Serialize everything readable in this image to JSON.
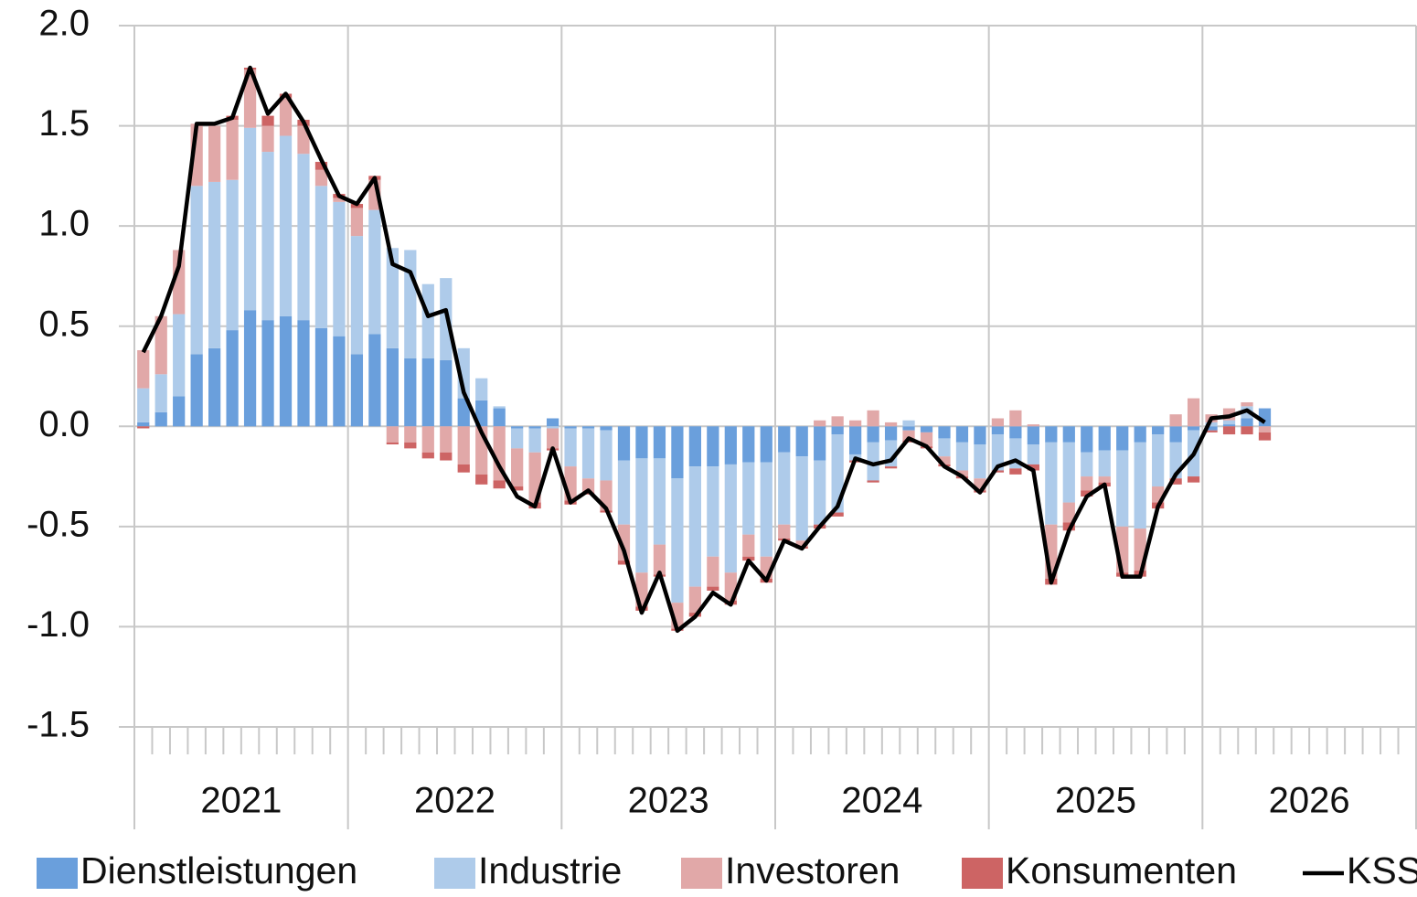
{
  "chart_data": {
    "type": "bar",
    "stacked": true,
    "grid": true,
    "legend": "bottom",
    "categories": [
      null,
      null,
      null,
      null,
      null,
      null,
      null,
      null,
      null,
      null,
      null,
      null,
      null,
      null,
      null,
      null,
      null,
      null,
      null,
      null,
      null,
      null,
      null,
      null,
      null,
      null,
      null,
      null,
      null,
      null,
      null,
      null,
      null,
      null,
      null,
      null,
      null,
      null,
      null,
      null,
      null,
      null,
      null,
      null,
      null,
      null,
      null,
      null,
      null,
      null,
      null,
      null,
      null,
      null,
      null,
      null,
      null,
      null,
      null,
      null,
      null,
      null,
      null,
      null,
      null,
      null,
      null,
      null,
      null,
      null,
      null,
      null
    ],
    "x_groups": [
      "2021",
      "2022",
      "2023",
      "2024",
      "2025",
      "2026"
    ],
    "ylim": [
      -1.5,
      2.0
    ],
    "yticks": [
      {
        "value": -1.5,
        "label": "-1.5"
      },
      {
        "value": -1.0,
        "label": "-1.0"
      },
      {
        "value": -0.5,
        "label": "-0.5"
      },
      {
        "value": 0,
        "label": "0.0"
      },
      {
        "value": 0.5,
        "label": "0.5"
      },
      {
        "value": 1.0,
        "label": "1.0"
      },
      {
        "value": 1.5,
        "label": "1.5"
      },
      {
        "value": 2.0,
        "label": "2.0"
      }
    ],
    "series": [
      {
        "name": "Dienstleistungen",
        "type": "bar",
        "color": "#6a9fdc",
        "values": [
          0.02,
          0.07,
          0.15,
          0.36,
          0.39,
          0.48,
          0.58,
          0.53,
          0.55,
          0.53,
          0.49,
          0.45,
          0.36,
          0.46,
          0.39,
          0.34,
          0.34,
          0.33,
          0.14,
          0.13,
          0.09,
          -0.01,
          -0.01,
          0.04,
          -0.01,
          -0.01,
          -0.02,
          -0.17,
          -0.16,
          -0.16,
          -0.26,
          -0.2,
          -0.2,
          -0.19,
          -0.18,
          -0.18,
          -0.13,
          -0.15,
          -0.17,
          -0.04,
          -0.14,
          -0.08,
          -0.07,
          -0.02,
          -0.03,
          -0.06,
          -0.08,
          -0.09,
          -0.04,
          -0.06,
          -0.09,
          -0.08,
          -0.08,
          -0.13,
          -0.12,
          -0.12,
          -0.08,
          -0.04,
          -0.08,
          -0.02,
          -0.02,
          0.01,
          0.04,
          0.09,
          null,
          null,
          null,
          null,
          null,
          null,
          null,
          null
        ]
      },
      {
        "name": "Industrie",
        "type": "bar",
        "color": "#aecbea",
        "values": [
          0.17,
          0.19,
          0.41,
          0.84,
          0.83,
          0.75,
          0.91,
          0.84,
          0.9,
          0.83,
          0.71,
          0.67,
          0.59,
          0.62,
          0.5,
          0.54,
          0.37,
          0.41,
          0.25,
          0.11,
          0.01,
          -0.1,
          -0.12,
          -0.01,
          -0.19,
          -0.25,
          -0.25,
          -0.32,
          -0.57,
          -0.43,
          -0.62,
          -0.6,
          -0.45,
          -0.54,
          -0.36,
          -0.47,
          -0.36,
          -0.42,
          -0.32,
          -0.39,
          -0.03,
          -0.19,
          -0.13,
          0.03,
          0,
          -0.09,
          -0.14,
          -0.17,
          -0.18,
          -0.15,
          -0.1,
          -0.41,
          -0.3,
          -0.12,
          -0.13,
          -0.38,
          -0.43,
          -0.26,
          -0.18,
          -0.23,
          0.02,
          0.02,
          0.06,
          0,
          null,
          null,
          null,
          null,
          null,
          null,
          null,
          null
        ]
      },
      {
        "name": "Investoren",
        "type": "bar",
        "color": "#e1a8a8",
        "values": [
          0.19,
          0.29,
          0.32,
          0.31,
          0.28,
          0.3,
          0.29,
          0.13,
          0.19,
          0.14,
          0.08,
          0.02,
          0.14,
          0.15,
          -0.08,
          -0.08,
          -0.13,
          -0.13,
          -0.19,
          -0.24,
          -0.27,
          -0.19,
          -0.25,
          -0.1,
          -0.17,
          -0.07,
          -0.15,
          -0.18,
          -0.17,
          -0.15,
          -0.13,
          -0.13,
          -0.15,
          -0.14,
          -0.11,
          -0.11,
          -0.07,
          -0.03,
          0.03,
          0.05,
          0.03,
          0.08,
          0.02,
          -0.05,
          -0.07,
          -0.04,
          -0.03,
          -0.06,
          0.04,
          0.08,
          0.01,
          -0.27,
          -0.1,
          -0.07,
          -0.03,
          -0.23,
          -0.21,
          -0.08,
          0.06,
          0.14,
          0.04,
          0.06,
          0.02,
          -0.03,
          null,
          null,
          null,
          null,
          null,
          null,
          null,
          null
        ]
      },
      {
        "name": "Konsumenten",
        "type": "bar",
        "color": "#cd6464",
        "values": [
          -0.01,
          0,
          0,
          0,
          0,
          0.02,
          0.01,
          0.05,
          0.02,
          0.03,
          0.04,
          0.02,
          0.02,
          0.02,
          -0.01,
          -0.03,
          -0.03,
          -0.04,
          -0.04,
          -0.05,
          -0.04,
          -0.02,
          -0.03,
          -0.01,
          -0.02,
          -0.01,
          -0.01,
          -0.02,
          -0.02,
          -0.01,
          -0.01,
          -0.02,
          -0.02,
          -0.02,
          -0.02,
          -0.02,
          -0.01,
          -0.01,
          -0.02,
          -0.02,
          -0.01,
          -0.01,
          -0.01,
          -0.01,
          -0.01,
          -0.01,
          -0.01,
          -0.01,
          -0.01,
          -0.03,
          -0.03,
          -0.03,
          -0.04,
          -0.03,
          -0.02,
          -0.02,
          -0.03,
          -0.03,
          -0.03,
          -0.03,
          -0.01,
          -0.04,
          -0.04,
          -0.04,
          null,
          null,
          null,
          null,
          null,
          null,
          null,
          null
        ]
      },
      {
        "name": "KSS",
        "type": "line",
        "color": "#000000",
        "values": [
          0.37,
          0.55,
          0.8,
          1.51,
          1.51,
          1.54,
          1.79,
          1.56,
          1.66,
          1.52,
          1.33,
          1.15,
          1.11,
          1.24,
          0.81,
          0.77,
          0.55,
          0.58,
          0.17,
          -0.03,
          -0.2,
          -0.35,
          -0.4,
          -0.11,
          -0.38,
          -0.32,
          -0.41,
          -0.62,
          -0.93,
          -0.73,
          -1.02,
          -0.95,
          -0.83,
          -0.89,
          -0.67,
          -0.77,
          -0.57,
          -0.61,
          -0.5,
          -0.4,
          -0.16,
          -0.19,
          -0.17,
          -0.06,
          -0.1,
          -0.2,
          -0.25,
          -0.33,
          -0.2,
          -0.17,
          -0.22,
          -0.78,
          -0.52,
          -0.35,
          -0.29,
          -0.75,
          -0.75,
          -0.4,
          -0.24,
          -0.14,
          0.04,
          0.05,
          0.08,
          0.02,
          null,
          null,
          null,
          null,
          null,
          null,
          null,
          null
        ]
      }
    ]
  }
}
